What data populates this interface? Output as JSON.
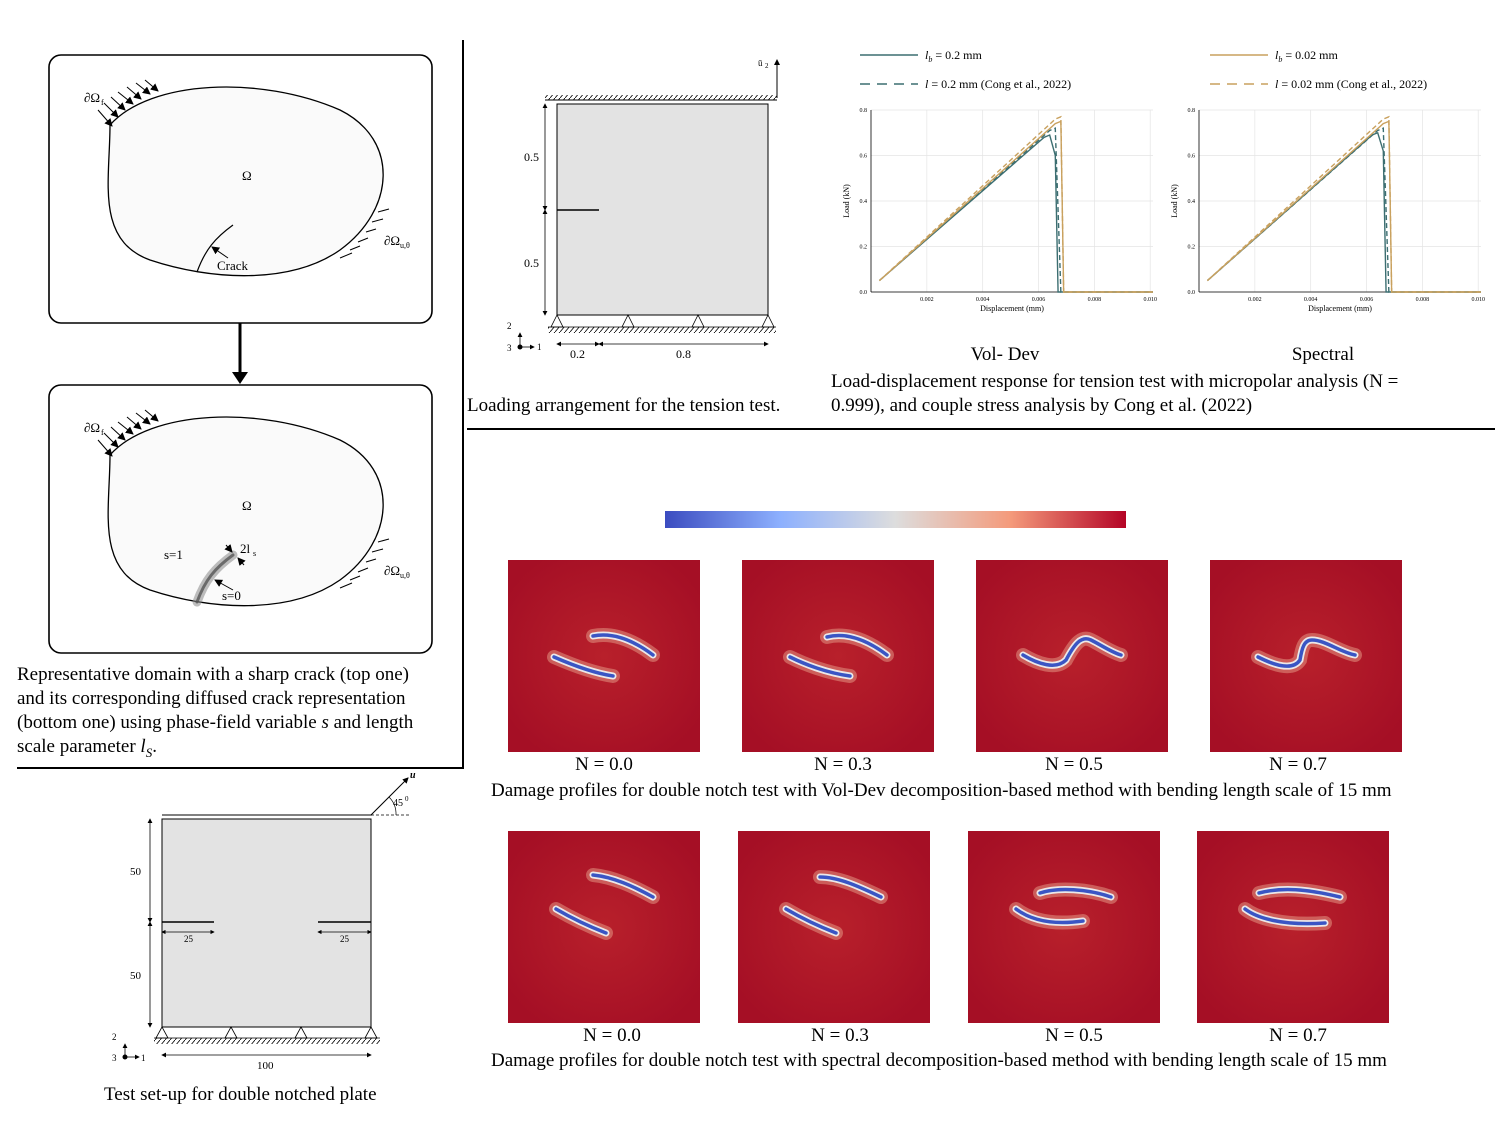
{
  "fig_domain": {
    "boundary_f": "∂Ω",
    "boundary_f_sub": "f",
    "omega": "Ω",
    "boundary_u": "∂Ω",
    "boundary_u_sub": "u,θ",
    "crack_label": "Crack",
    "s1": "s=1",
    "s0": "s=0",
    "ls_label": "2l",
    "ls_sub": "s",
    "caption_line1": "Representative domain with a sharp crack (top one)",
    "caption_line2": "and its corresponding diffused crack representation",
    "caption_line3_a": "(bottom one) using phase-field variable ",
    "caption_line3_s": "s",
    "caption_line3_b": " and length",
    "caption_line4_a": "scale parameter ",
    "caption_line4_l": "l",
    "caption_line4_sub": "S",
    "caption_line4_b": "."
  },
  "fig_tension": {
    "u_label": "ū",
    "u_sub": "2",
    "dim_top": "0.5",
    "dim_bottom": "0.5",
    "dim_left": "0.2",
    "dim_right": "0.8",
    "axis2": "2",
    "axis1": "1",
    "axis3": "3",
    "caption": "Loading arrangement for the tension test."
  },
  "fig_load": {
    "legend": [
      {
        "sym": "l",
        "sub": "b",
        "text": " = 0.2 mm",
        "color": "#3c6e71",
        "dash": false
      },
      {
        "sym": "l",
        "sub": "",
        "text": " = 0.2 mm (Cong et al., 2022)",
        "color": "#3c6e71",
        "dash": true
      },
      {
        "sym": "l",
        "sub": "b",
        "text": " = 0.02 mm",
        "color": "#c9a15e",
        "dash": false
      },
      {
        "sym": "l",
        "sub": "",
        "text": " = 0.02 mm (Cong et al., 2022)",
        "color": "#c9a15e",
        "dash": true
      }
    ],
    "label_left": "Vol- Dev",
    "label_right": "Spectral",
    "caption_line1": "Load-displacement response for tension test with micropolar analysis (N =",
    "caption_line2": "0.999), and couple stress analysis by Cong et al. (2022)"
  },
  "chart_data": [
    {
      "type": "line",
      "name": "Vol- Dev",
      "xlabel": "Displacement (mm)",
      "ylabel": "Load (kN)",
      "xlim": [
        0,
        0.0101
      ],
      "ylim": [
        0,
        0.8
      ],
      "xticks": [
        "0.002",
        "0.004",
        "0.006",
        "0.008",
        "0.010"
      ],
      "yticks": [
        "0.0",
        "0.2",
        "0.4",
        "0.6",
        "0.8"
      ],
      "grid": true,
      "series": [
        {
          "name": "l_b = 0.2 mm",
          "color": "#3c6e71",
          "dash": false,
          "x": [
            0.0003,
            0.0062,
            0.0064,
            0.0066,
            0.0067,
            0.0101
          ],
          "y": [
            0.05,
            0.68,
            0.69,
            0.6,
            0.0,
            0.0
          ]
        },
        {
          "name": "l = 0.2 mm (Cong et al., 2022)",
          "color": "#3c6e71",
          "dash": true,
          "x": [
            0.0003,
            0.0064,
            0.0066,
            0.0068,
            0.0101
          ],
          "y": [
            0.05,
            0.71,
            0.72,
            0.0,
            0.0
          ]
        },
        {
          "name": "l_b = 0.02 mm",
          "color": "#c9a15e",
          "dash": false,
          "x": [
            0.0003,
            0.0066,
            0.0068,
            0.0069,
            0.0101
          ],
          "y": [
            0.05,
            0.74,
            0.75,
            0.0,
            0.0
          ]
        },
        {
          "name": "l = 0.02 mm (Cong et al., 2022)",
          "color": "#c9a15e",
          "dash": true,
          "x": [
            0.0003,
            0.0066,
            0.0068,
            0.0069,
            0.0101
          ],
          "y": [
            0.05,
            0.76,
            0.77,
            0.0,
            0.0
          ]
        }
      ]
    },
    {
      "type": "line",
      "name": "Spectral",
      "xlabel": "Displacement (mm)",
      "ylabel": "Load (kN)",
      "xlim": [
        0,
        0.0101
      ],
      "ylim": [
        0,
        0.8
      ],
      "xticks": [
        "0.002",
        "0.004",
        "0.006",
        "0.008",
        "0.010"
      ],
      "yticks": [
        "0.0",
        "0.2",
        "0.4",
        "0.6",
        "0.8"
      ],
      "grid": true,
      "series": [
        {
          "name": "l_b = 0.2 mm",
          "color": "#3c6e71",
          "dash": false,
          "x": [
            0.0003,
            0.0062,
            0.0064,
            0.0066,
            0.0067,
            0.0101
          ],
          "y": [
            0.05,
            0.69,
            0.7,
            0.62,
            0.0,
            0.0
          ]
        },
        {
          "name": "l = 0.2 mm (Cong et al., 2022)",
          "color": "#3c6e71",
          "dash": true,
          "x": [
            0.0003,
            0.0064,
            0.0066,
            0.0068,
            0.0101
          ],
          "y": [
            0.05,
            0.71,
            0.72,
            0.0,
            0.0
          ]
        },
        {
          "name": "l_b = 0.02 mm",
          "color": "#c9a15e",
          "dash": false,
          "x": [
            0.0003,
            0.0066,
            0.0068,
            0.0069,
            0.0101
          ],
          "y": [
            0.05,
            0.74,
            0.75,
            0.0,
            0.0
          ]
        },
        {
          "name": "l = 0.02 mm (Cong et al., 2022)",
          "color": "#c9a15e",
          "dash": true,
          "x": [
            0.0003,
            0.0066,
            0.0068,
            0.0069,
            0.0101
          ],
          "y": [
            0.05,
            0.76,
            0.77,
            0.0,
            0.0
          ]
        }
      ]
    }
  ],
  "fig_damage": {
    "colormap": [
      "#3b4cc0",
      "#8db0fe",
      "#dddddd",
      "#f49a7b",
      "#b40426"
    ],
    "row1_labels": [
      "N = 0.0",
      "N = 0.3",
      "N = 0.5",
      "N = 0.7"
    ],
    "row1_caption": "Damage profiles for double notch test with Vol-Dev decomposition-based method with bending length scale of 15 mm",
    "row2_labels": [
      "N = 0.0",
      "N = 0.3",
      "N = 0.5",
      "N = 0.7"
    ],
    "row2_caption": "Damage profiles for double notch test with spectral decomposition-based method with bending length scale of 15 mm"
  },
  "fig_notch": {
    "u_label": "u",
    "angle": "45",
    "angle_sup": "0",
    "dim_top": "50",
    "dim_bottom": "50",
    "notch_left": "25",
    "notch_right": "25",
    "width": "100",
    "axis2": "2",
    "axis1": "1",
    "axis3": "3",
    "caption": "Test set-up for double notched plate"
  }
}
